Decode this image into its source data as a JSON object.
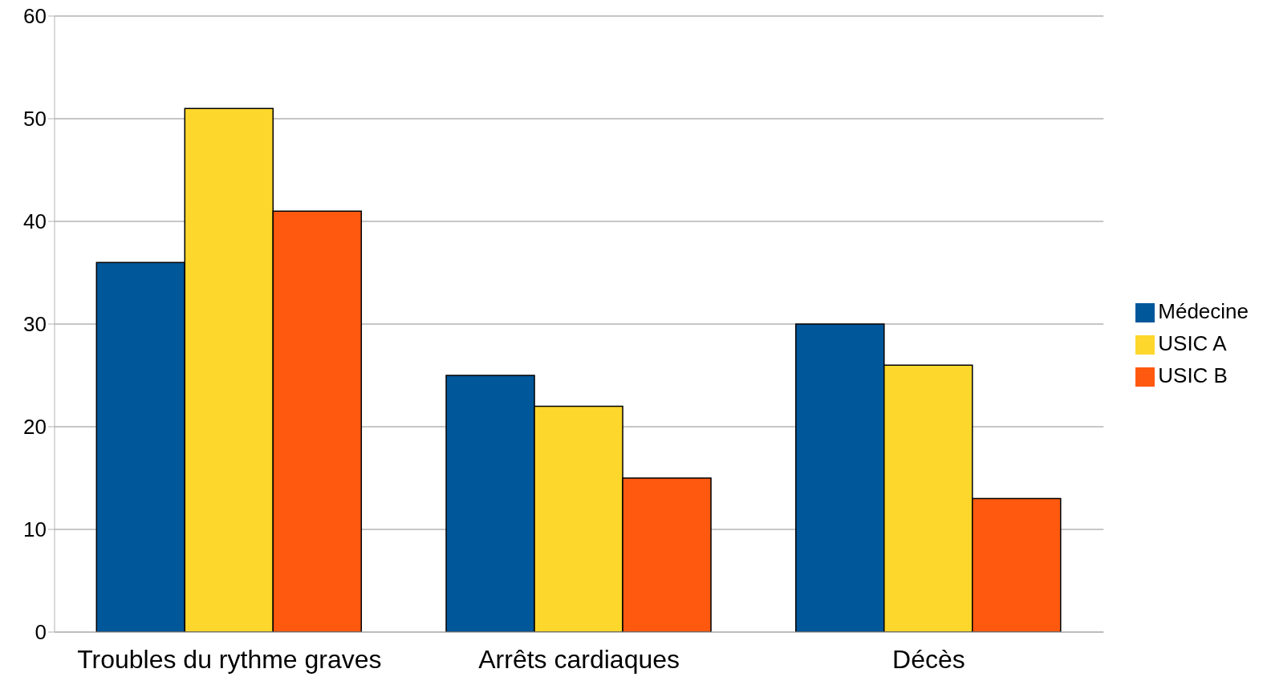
{
  "chart_data": {
    "type": "bar",
    "categories": [
      "Troubles du rythme graves",
      "Arrêts cardiaques",
      "Décès"
    ],
    "series": [
      {
        "name": "Médecine",
        "color": "#00579a",
        "values": [
          36,
          25,
          30
        ]
      },
      {
        "name": "USIC A",
        "color": "#fdd72b",
        "values": [
          51,
          22,
          26
        ]
      },
      {
        "name": "USIC B",
        "color": "#ff590f",
        "values": [
          41,
          15,
          13
        ]
      }
    ],
    "ylim": [
      0,
      60
    ],
    "yticks": [
      0,
      10,
      20,
      30,
      40,
      50,
      60
    ],
    "grid": "y",
    "legend": "right"
  }
}
